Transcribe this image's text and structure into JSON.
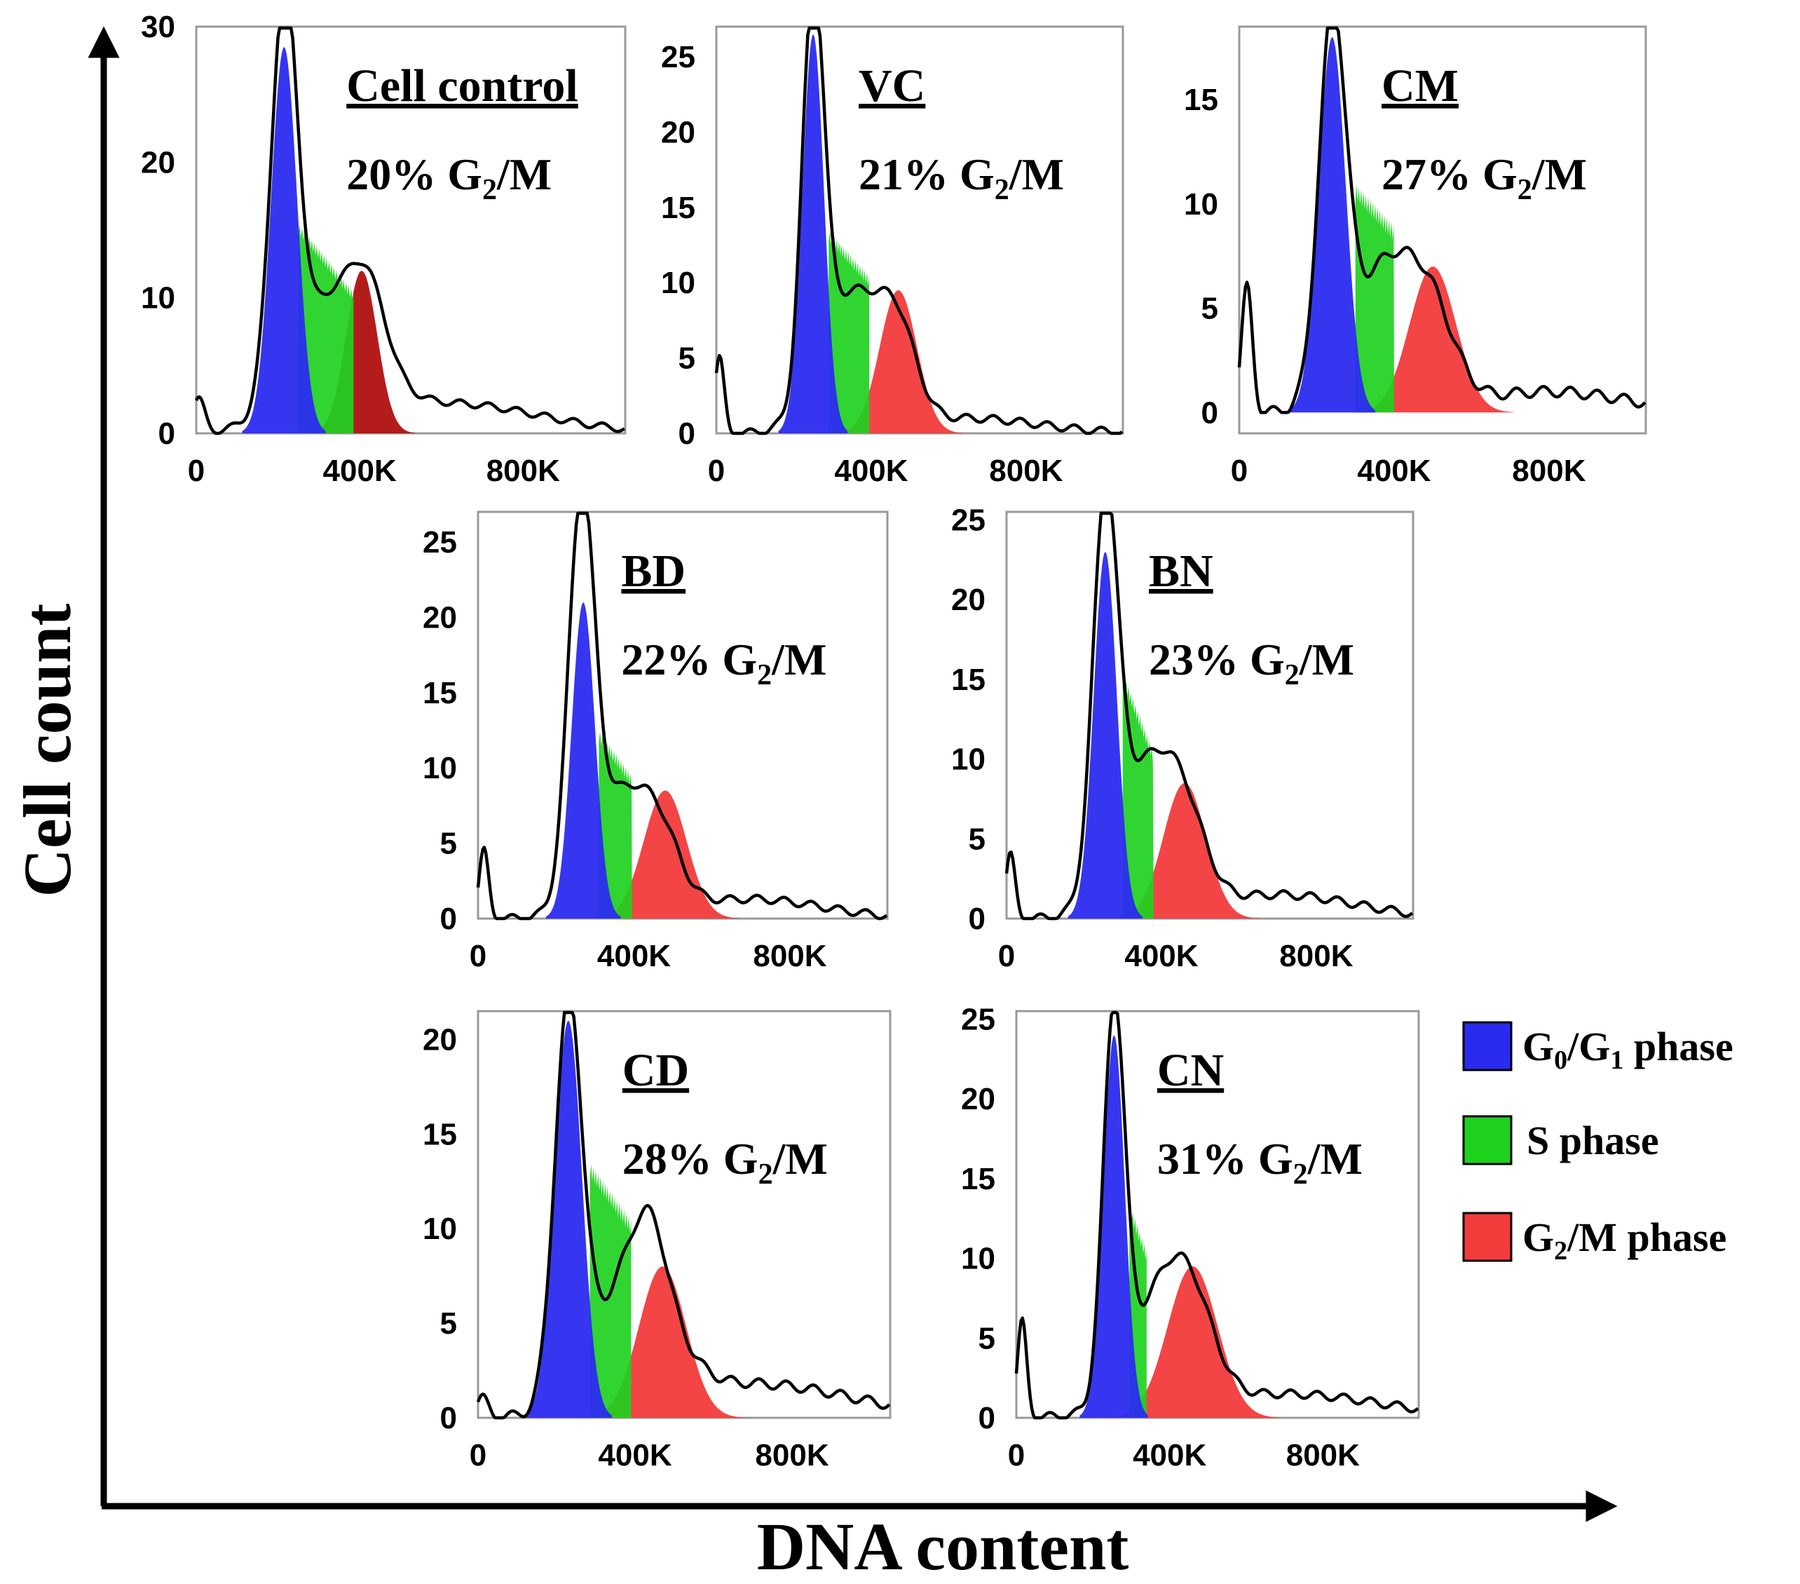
{
  "figure": {
    "ylabel": "Cell count",
    "xlabel": "DNA content"
  },
  "legend": [
    {
      "id": "g0g1",
      "label": "G",
      "sub1": "0",
      "mid": "/G",
      "sub2": "1",
      "tail": " phase",
      "color": "#2b2bf0"
    },
    {
      "id": "s",
      "label": "S phase",
      "color": "#1fd11f"
    },
    {
      "id": "g2m",
      "label": "G",
      "sub1": "2",
      "mid": "/M phase",
      "color": "#f23b3b"
    }
  ],
  "colors": {
    "g0g1": "#2b2bf0",
    "s": "#1fd11f",
    "g2m": "#f23b3b",
    "g2m_dark": "#b01010",
    "outline": "#000000"
  },
  "chart_data": [
    {
      "id": "cell-control",
      "type": "area",
      "title": "Cell control",
      "g2m_percent": "20%",
      "g2m_label_prefix": "20% G",
      "g2m_label_sub": "2",
      "g2m_label_suffix": "/M",
      "xlabel": "DNA content",
      "ylabel": "Cell count",
      "xlim": [
        0,
        1050
      ],
      "x_unit": "K",
      "ylim": [
        0,
        30
      ],
      "yticks": [
        "0",
        "10",
        "20",
        "30"
      ],
      "xticks": [
        "0",
        "400K",
        "800K"
      ],
      "g1_peak": {
        "mean": 215,
        "sd": 32,
        "height": 28.5
      },
      "s_phase": {
        "start": 250,
        "end": 385,
        "level_start": 15,
        "level_end": 10
      },
      "g2_peak": {
        "mean": 405,
        "sd": 38,
        "height": 12
      },
      "histogram_peaks": [
        {
          "mean": 215,
          "sd": 32,
          "height": 28.5
        },
        {
          "mean": 330,
          "sd": 95,
          "height": 9
        },
        {
          "mean": 420,
          "sd": 45,
          "height": 5
        },
        {
          "mean": 620,
          "sd": 220,
          "height": 2.2
        },
        {
          "mean": 5,
          "sd": 15,
          "height": 2.5
        }
      ]
    },
    {
      "id": "vc",
      "type": "area",
      "title": "VC",
      "g2m_percent": "21%",
      "g2m_label_prefix": "21% G",
      "g2m_label_sub": "2",
      "g2m_label_suffix": "/M",
      "xlabel": "DNA content",
      "ylabel": "Cell count",
      "xlim": [
        0,
        1050
      ],
      "x_unit": "K",
      "ylim": [
        0,
        27
      ],
      "yticks": [
        "0",
        "5",
        "10",
        "15",
        "20",
        "25"
      ],
      "xticks": [
        "0",
        "400K",
        "800K"
      ],
      "g1_peak": {
        "mean": 250,
        "sd": 28,
        "height": 26.5
      },
      "s_phase": {
        "start": 290,
        "end": 395,
        "level_start": 13,
        "level_end": 10
      },
      "g2_peak": {
        "mean": 470,
        "sd": 48,
        "height": 9.5
      },
      "histogram_peaks": [
        {
          "mean": 250,
          "sd": 28,
          "height": 26
        },
        {
          "mean": 350,
          "sd": 80,
          "height": 9
        },
        {
          "mean": 470,
          "sd": 48,
          "height": 5
        },
        {
          "mean": 650,
          "sd": 180,
          "height": 1
        },
        {
          "mean": 8,
          "sd": 12,
          "height": 5
        }
      ]
    },
    {
      "id": "cm",
      "type": "area",
      "title": "CM",
      "g2m_percent": "27%",
      "g2m_label_prefix": "27% G",
      "g2m_label_sub": "2",
      "g2m_label_suffix": "/M",
      "xlabel": "DNA content",
      "ylabel": "Cell count",
      "xlim": [
        0,
        1050
      ],
      "x_unit": "K",
      "ylim": [
        -1,
        18.5
      ],
      "yticks": [
        "0",
        "5",
        "10",
        "15"
      ],
      "xticks": [
        "0",
        "400K",
        "800K"
      ],
      "g1_peak": {
        "mean": 240,
        "sd": 35,
        "height": 18
      },
      "s_phase": {
        "start": 300,
        "end": 400,
        "level_start": 10.5,
        "level_end": 8.5
      },
      "g2_peak": {
        "mean": 500,
        "sd": 60,
        "height": 7
      },
      "histogram_peaks": [
        {
          "mean": 240,
          "sd": 35,
          "height": 17.5
        },
        {
          "mean": 380,
          "sd": 90,
          "height": 7
        },
        {
          "mean": 500,
          "sd": 60,
          "height": 3
        },
        {
          "mean": 800,
          "sd": 200,
          "height": 1
        },
        {
          "mean": 20,
          "sd": 14,
          "height": 6
        }
      ]
    },
    {
      "id": "bd",
      "type": "area",
      "title": "BD",
      "g2m_percent": "22%",
      "g2m_label_prefix": "22% G",
      "g2m_label_sub": "2",
      "g2m_label_suffix": "/M",
      "xlabel": "DNA content",
      "ylabel": "Cell count",
      "xlim": [
        0,
        1050
      ],
      "x_unit": "K",
      "ylim": [
        0,
        27
      ],
      "yticks": [
        "0",
        "5",
        "10",
        "15",
        "20",
        "25"
      ],
      "xticks": [
        "0",
        "400K",
        "800K"
      ],
      "g1_peak": {
        "mean": 270,
        "sd": 30,
        "height": 21
      },
      "s_phase": {
        "start": 310,
        "end": 395,
        "level_start": 12,
        "level_end": 9
      },
      "g2_peak": {
        "mean": 480,
        "sd": 55,
        "height": 8.5
      },
      "histogram_peaks": [
        {
          "mean": 265,
          "sd": 33,
          "height": 25.5
        },
        {
          "mean": 370,
          "sd": 80,
          "height": 8
        },
        {
          "mean": 470,
          "sd": 50,
          "height": 3
        },
        {
          "mean": 700,
          "sd": 180,
          "height": 1.3
        },
        {
          "mean": 15,
          "sd": 12,
          "height": 4.5
        }
      ]
    },
    {
      "id": "bn",
      "type": "area",
      "title": "BN",
      "g2m_percent": "23%",
      "g2m_label_prefix": "23% G",
      "g2m_label_sub": "2",
      "g2m_label_suffix": "/M",
      "xlabel": "DNA content",
      "ylabel": "Cell count",
      "xlim": [
        0,
        1050
      ],
      "x_unit": "K",
      "ylim": [
        0,
        25.5
      ],
      "yticks": [
        "0",
        "5",
        "10",
        "15",
        "20",
        "25"
      ],
      "xticks": [
        "0",
        "400K",
        "800K"
      ],
      "g1_peak": {
        "mean": 255,
        "sd": 30,
        "height": 23
      },
      "s_phase": {
        "start": 300,
        "end": 380,
        "level_start": 15,
        "level_end": 10
      },
      "g2_peak": {
        "mean": 460,
        "sd": 55,
        "height": 8.5
      },
      "histogram_peaks": [
        {
          "mean": 255,
          "sd": 32,
          "height": 23.5
        },
        {
          "mean": 360,
          "sd": 80,
          "height": 9
        },
        {
          "mean": 460,
          "sd": 55,
          "height": 4
        },
        {
          "mean": 700,
          "sd": 200,
          "height": 1.5
        },
        {
          "mean": 10,
          "sd": 12,
          "height": 4
        }
      ]
    },
    {
      "id": "cd",
      "type": "area",
      "title": "CD",
      "g2m_percent": "28%",
      "g2m_label_prefix": "28% G",
      "g2m_label_sub": "2",
      "g2m_label_suffix": "/M",
      "xlabel": "DNA content",
      "ylabel": "Cell count",
      "xlim": [
        0,
        1050
      ],
      "x_unit": "K",
      "ylim": [
        0,
        21.5
      ],
      "yticks": [
        "0",
        "5",
        "10",
        "15",
        "20"
      ],
      "xticks": [
        "0",
        "400K",
        "800K"
      ],
      "g1_peak": {
        "mean": 230,
        "sd": 35,
        "height": 21
      },
      "s_phase": {
        "start": 285,
        "end": 390,
        "level_start": 13,
        "level_end": 10
      },
      "g2_peak": {
        "mean": 470,
        "sd": 60,
        "height": 8
      },
      "histogram_peaks": [
        {
          "mean": 230,
          "sd": 35,
          "height": 20.8
        },
        {
          "mean": 400,
          "sd": 90,
          "height": 7.5
        },
        {
          "mean": 440,
          "sd": 40,
          "height": 3
        },
        {
          "mean": 700,
          "sd": 250,
          "height": 1.8
        },
        {
          "mean": 10,
          "sd": 15,
          "height": 1
        }
      ]
    },
    {
      "id": "cn",
      "type": "area",
      "title": "CN",
      "g2m_percent": "31%",
      "g2m_label_prefix": "31% G",
      "g2m_label_sub": "2",
      "g2m_label_suffix": "/M",
      "xlabel": "DNA content",
      "ylabel": "Cell count",
      "xlim": [
        0,
        1050
      ],
      "x_unit": "K",
      "ylim": [
        0,
        25.5
      ],
      "yticks": [
        "0",
        "5",
        "10",
        "15",
        "20",
        "25"
      ],
      "xticks": [
        "0",
        "400K",
        "800K"
      ],
      "g1_peak": {
        "mean": 255,
        "sd": 28,
        "height": 24
      },
      "s_phase": {
        "start": 295,
        "end": 340,
        "level_start": 13,
        "level_end": 10
      },
      "g2_peak": {
        "mean": 460,
        "sd": 65,
        "height": 9.5
      },
      "histogram_peaks": [
        {
          "mean": 255,
          "sd": 28,
          "height": 24
        },
        {
          "mean": 380,
          "sd": 80,
          "height": 7
        },
        {
          "mean": 460,
          "sd": 60,
          "height": 4
        },
        {
          "mean": 700,
          "sd": 250,
          "height": 1.5
        },
        {
          "mean": 15,
          "sd": 12,
          "height": 6
        }
      ]
    }
  ]
}
